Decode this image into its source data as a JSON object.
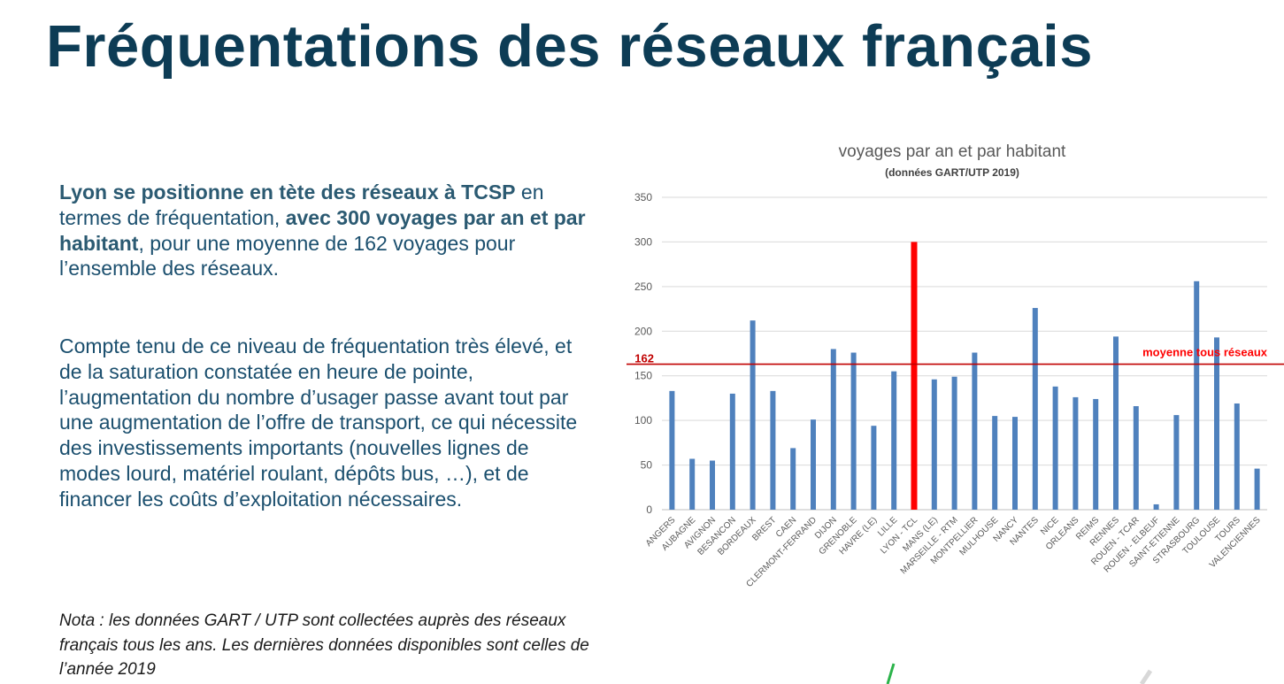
{
  "page": {
    "title": "Fréquentations des réseaux français",
    "paragraph1": {
      "b1": "Lyon se positionne en tète des réseaux à TCSP",
      "t1": " en termes de fréquentation, ",
      "b2": "avec 300 voyages par an et par habitant",
      "t2": ", pour une moyenne de 162 voyages pour l’ensemble des réseaux."
    },
    "paragraph2": "Compte tenu de ce niveau de fréquentation très élevé, et de la saturation constatée en heure de pointe, l’augmentation du nombre d’usager passe avant tout par une augmentation de l’offre de transport, ce qui nécessite des investissements importants (nouvelles lignes de modes lourd, matériel roulant, dépôts bus, …), et de financer les coûts d’exploitation nécessaires.",
    "note": "Nota : les données GART / UTP sont collectées auprès des réseaux français tous les ans. Les dernières données disponibles sont celles de l’année 2019"
  },
  "chart_data": {
    "type": "bar",
    "title": "voyages par an et par habitant",
    "subtitle": "(données GART/UTP 2019)",
    "xlabel": "",
    "ylabel": "",
    "ylim": [
      0,
      350
    ],
    "yticks": [
      0,
      50,
      100,
      150,
      200,
      250,
      300,
      350
    ],
    "grid": true,
    "categories": [
      "ANGERS",
      "AUBAGNE",
      "AVIGNON",
      "BESANCON",
      "BORDEAUX",
      "BREST",
      "CAEN",
      "CLERMONT-FERRAND",
      "DIJON",
      "GRENOBLE",
      "HAVRE (LE)",
      "LILLE",
      "LYON - TCL",
      "MANS (LE)",
      "MARSEILLE - RTM",
      "MONTPELLIER",
      "MULHOUSE",
      "NANCY",
      "NANTES",
      "NICE",
      "ORLEANS",
      "REIMS",
      "RENNES",
      "ROUEN - TCAR",
      "ROUEN - ELBEUF",
      "SAINT-ETIENNE",
      "STRASBOURG",
      "TOULOUSE",
      "TOURS",
      "VALENCIENNES"
    ],
    "values": [
      133,
      57,
      55,
      130,
      212,
      133,
      69,
      101,
      180,
      176,
      94,
      155,
      300,
      146,
      149,
      176,
      105,
      104,
      226,
      138,
      126,
      124,
      194,
      116,
      6,
      106,
      256,
      193,
      119,
      46
    ],
    "highlight": {
      "category": "LYON - TCL",
      "color": "#ff0000"
    },
    "bar_color": "#4f81bd",
    "reference_line": {
      "value": 162,
      "label": "162",
      "caption": "moyenne tous réseaux",
      "color": "#c00000"
    }
  }
}
